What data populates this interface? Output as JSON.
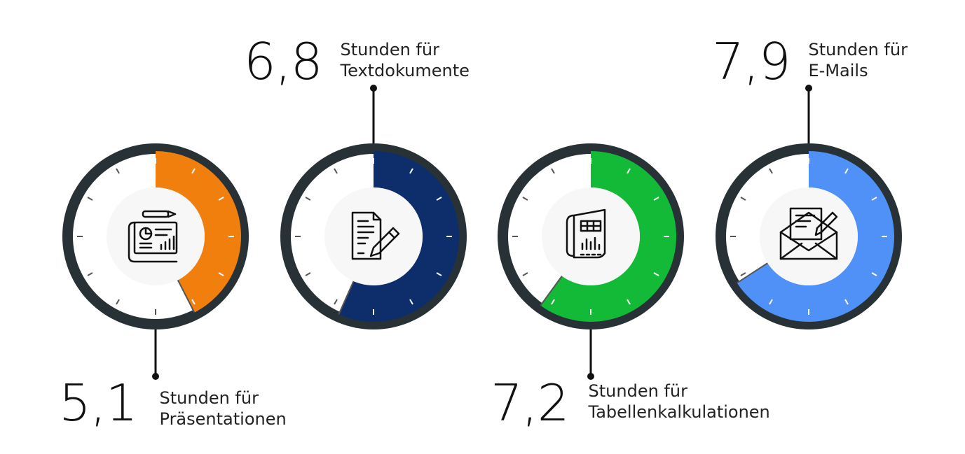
{
  "chart_data": {
    "type": "gauge",
    "scale_max_hours": 12,
    "dial_color": "#283136",
    "items": [
      {
        "id": "praesentationen",
        "value": 5.1,
        "value_label": "5,1",
        "line1": "Stunden für",
        "line2": "Präsentationen",
        "color": "#F07F0E",
        "icon": "presentation-icon",
        "label_position": "below"
      },
      {
        "id": "textdokumente",
        "value": 6.8,
        "value_label": "6,8",
        "line1": "Stunden für",
        "line2": "Textdokumente",
        "color": "#0E2E6B",
        "icon": "document-pen-icon",
        "label_position": "above"
      },
      {
        "id": "tabellenkalkulationen",
        "value": 7.2,
        "value_label": "7,2",
        "line1": "Stunden für",
        "line2": "Tabellenkalkulationen",
        "color": "#12BA38",
        "icon": "spreadsheet-icon",
        "label_position": "below"
      },
      {
        "id": "emails",
        "value": 7.9,
        "value_label": "7,9",
        "line1": "Stunden für",
        "line2": "E-Mails",
        "color": "#5091F8",
        "icon": "email-icon",
        "label_position": "above"
      }
    ]
  }
}
